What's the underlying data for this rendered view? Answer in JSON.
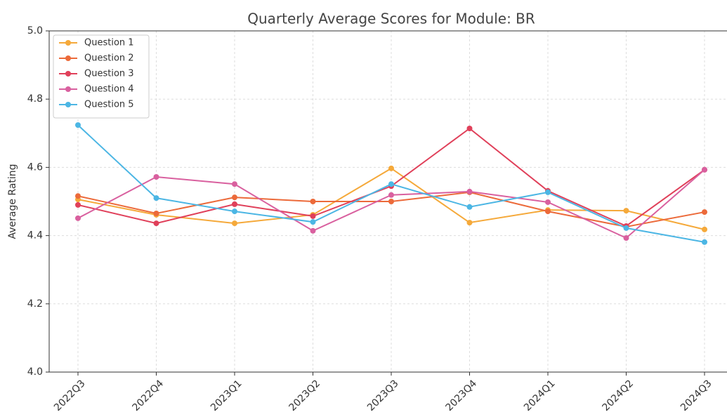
{
  "chart_data": {
    "type": "line",
    "title": "Quarterly Average Scores for Module: BR",
    "y_label": "Average Rating",
    "categories": [
      "2022Q3",
      "2022Q4",
      "2023Q1",
      "2023Q2",
      "2023Q3",
      "2023Q4",
      "2024Q1",
      "2024Q2",
      "2024Q3"
    ],
    "series": [
      {
        "name": "Question 1",
        "color": "#f5a93a",
        "values": [
          4.506,
          4.461,
          4.436,
          4.461,
          4.597,
          4.438,
          4.475,
          4.473,
          4.418
        ]
      },
      {
        "name": "Question 2",
        "color": "#ec6a3a",
        "values": [
          4.516,
          4.465,
          4.512,
          4.5,
          4.5,
          4.527,
          4.471,
          4.426,
          4.469
        ]
      },
      {
        "name": "Question 3",
        "color": "#e0405a",
        "values": [
          4.49,
          4.436,
          4.492,
          4.457,
          4.545,
          4.714,
          4.531,
          4.428,
          4.593
        ]
      },
      {
        "name": "Question 4",
        "color": "#d9609f",
        "values": [
          4.451,
          4.572,
          4.551,
          4.414,
          4.519,
          4.529,
          4.498,
          4.393,
          4.593
        ]
      },
      {
        "name": "Question 5",
        "color": "#4cb6e4",
        "values": [
          4.724,
          4.51,
          4.471,
          4.44,
          4.551,
          4.484,
          4.527,
          4.422,
          4.381
        ]
      }
    ],
    "ylim": [
      4.0,
      5.0
    ],
    "yticks": [
      {
        "value": 4.0,
        "label": "4.0"
      },
      {
        "value": 4.2,
        "label": "4.2"
      },
      {
        "value": 4.4,
        "label": "4.4"
      },
      {
        "value": 4.6,
        "label": "4.6"
      },
      {
        "value": 4.8,
        "label": "4.8"
      },
      {
        "value": 5.0,
        "label": "5.0"
      }
    ],
    "grid": true,
    "legend": "upper left"
  }
}
